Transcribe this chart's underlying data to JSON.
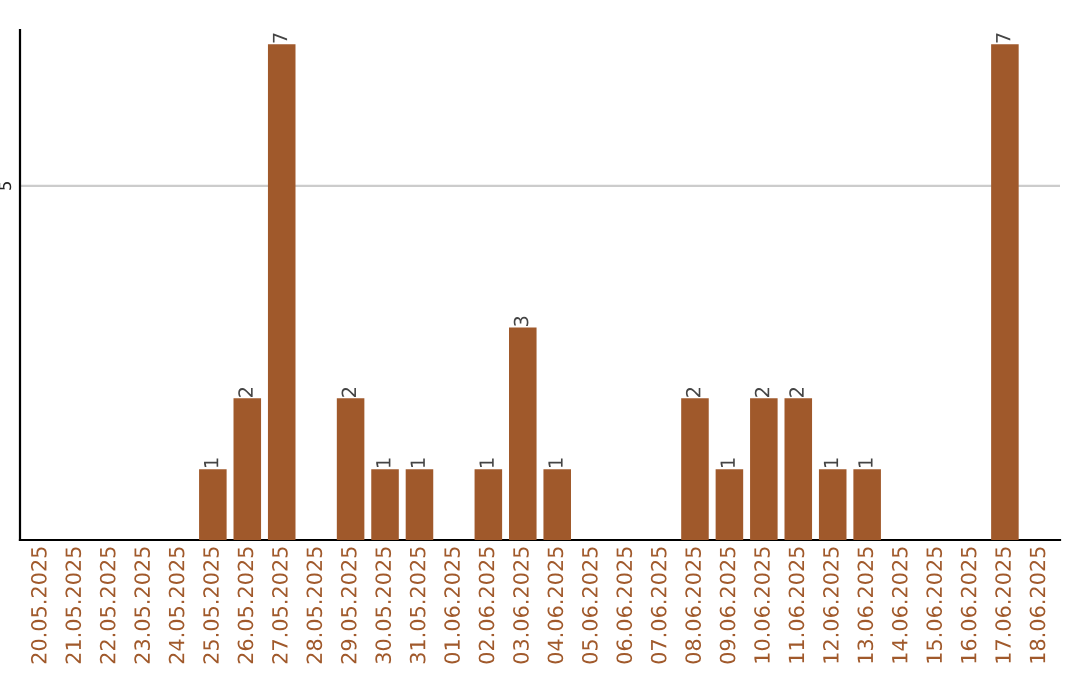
{
  "chart_data": {
    "type": "bar",
    "categories": [
      "20.05.2025",
      "21.05.2025",
      "22.05.2025",
      "23.05.2025",
      "24.05.2025",
      "25.05.2025",
      "26.05.2025",
      "27.05.2025",
      "28.05.2025",
      "29.05.2025",
      "30.05.2025",
      "31.05.2025",
      "01.06.2025",
      "02.06.2025",
      "03.06.2025",
      "04.06.2025",
      "05.06.2025",
      "06.06.2025",
      "07.06.2025",
      "08.06.2025",
      "09.06.2025",
      "10.06.2025",
      "11.06.2025",
      "12.06.2025",
      "13.06.2025",
      "14.06.2025",
      "15.06.2025",
      "16.06.2025",
      "17.06.2025",
      "18.06.2025"
    ],
    "values": [
      0,
      0,
      0,
      0,
      0,
      1,
      2,
      7,
      0,
      2,
      1,
      1,
      0,
      1,
      3,
      1,
      0,
      0,
      0,
      2,
      1,
      2,
      2,
      1,
      1,
      0,
      0,
      0,
      7,
      0
    ],
    "value_labels": [
      null,
      null,
      null,
      null,
      null,
      "1",
      "2",
      "7",
      null,
      "2",
      "1",
      "1",
      null,
      "1",
      "3",
      "1",
      null,
      null,
      null,
      "2",
      "1",
      "2",
      "2",
      "1",
      "1",
      null,
      null,
      null,
      "7",
      null
    ],
    "color": "#a0592b",
    "ylim": [
      0,
      7.2
    ],
    "yticks": [
      5
    ],
    "grid": "y",
    "legend": false
  }
}
